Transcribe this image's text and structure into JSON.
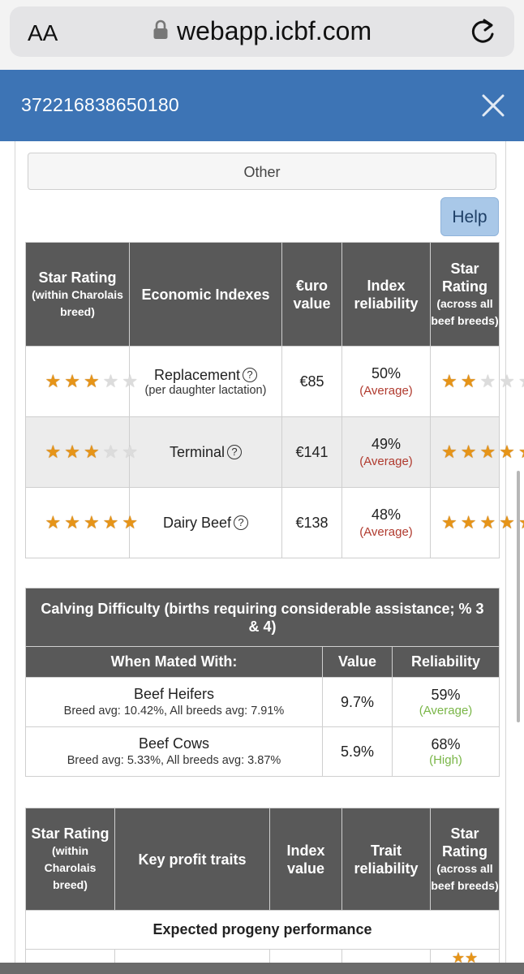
{
  "browser": {
    "aa_label": "AA",
    "url": "webapp.icbf.com"
  },
  "header": {
    "id": "372216838650180"
  },
  "other_label": "Other",
  "help_label": "Help",
  "economic": {
    "headers": {
      "star_within": "Star Rating",
      "star_within_sub": "(within Charolais breed)",
      "economic": "Economic Indexes",
      "euro": "€uro value",
      "reliability": "Index reliability",
      "star_across": "Star Rating",
      "star_across_sub": "(across all beef breeds)"
    },
    "rows": [
      {
        "trait": "Replacement",
        "trait_sub": "(per daughter lactation)",
        "value": "€85",
        "reliability": "50%",
        "reliability_label": "(Average)",
        "stars_within": 3,
        "stars_across": 2
      },
      {
        "trait": "Terminal",
        "trait_sub": "",
        "value": "€141",
        "reliability": "49%",
        "reliability_label": "(Average)",
        "stars_within": 3,
        "stars_across": 5
      },
      {
        "trait": "Dairy Beef",
        "trait_sub": "",
        "value": "€138",
        "reliability": "48%",
        "reliability_label": "(Average)",
        "stars_within": 5,
        "stars_across": 5
      }
    ]
  },
  "calving": {
    "title": "Calving Difficulty (births requiring considerable assistance; % 3 & 4)",
    "headers": {
      "mated": "When Mated With:",
      "value": "Value",
      "reliability": "Reliability"
    },
    "rows": [
      {
        "name": "Beef Heifers",
        "avg": "Breed avg: 10.42%, All breeds avg: 7.91%",
        "value": "9.7%",
        "reliability": "59%",
        "reliability_label": "(Average)"
      },
      {
        "name": "Beef Cows",
        "avg": "Breed avg: 5.33%, All breeds avg: 3.87%",
        "value": "5.9%",
        "reliability": "68%",
        "reliability_label": "(High)"
      }
    ]
  },
  "profit": {
    "headers": {
      "star_within": "Star Rating",
      "star_within_sub": "(within Charolais breed)",
      "traits": "Key profit traits",
      "index": "Index value",
      "reliability": "Trait reliability",
      "star_across": "Star Rating",
      "star_across_sub": "(across all beef breeds)"
    },
    "section": "Expected progeny performance"
  },
  "colors": {
    "header_blue": "#3d74b5",
    "table_header": "#595959",
    "star": "#e69418",
    "reliability_avg": "#b03a2e",
    "reliability_high": "#7ab648"
  }
}
